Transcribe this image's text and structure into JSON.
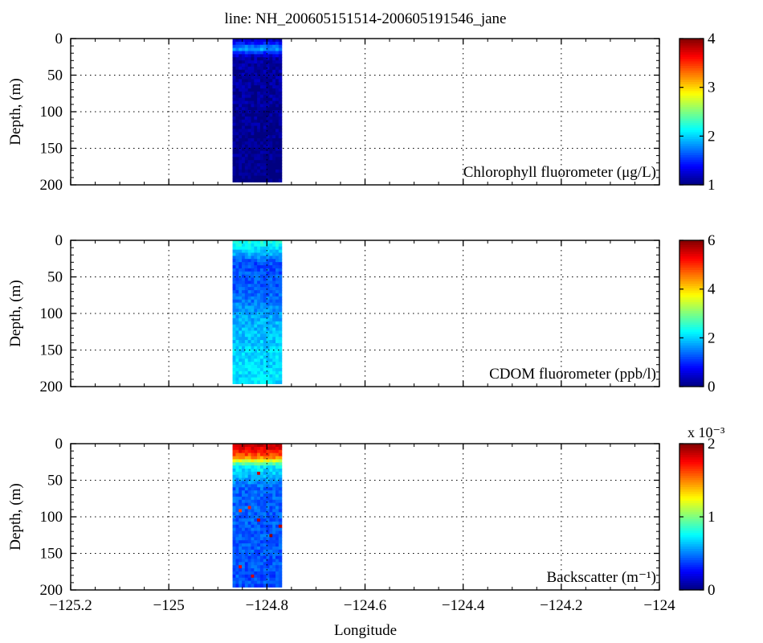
{
  "title": "line: NH_200605151514-200605191546_jane",
  "xlabel": "Longitude",
  "ylabel": "Depth, (m)",
  "chart_data": [
    {
      "type": "heatmap",
      "name": "chlorophyll",
      "label": "Chlorophyll fluorometer (μg/L)",
      "xlim": [
        -125.2,
        -124.0
      ],
      "ylim": [
        0,
        200
      ],
      "xticks": [
        -125.2,
        -125.0,
        -124.8,
        -124.6,
        -124.4,
        -124.2,
        -124.0
      ],
      "xtick_labels": [
        "−125.2",
        "−125",
        "−124.8",
        "−124.6",
        "−124.4",
        "−124.2",
        "−124"
      ],
      "yticks": [
        0,
        50,
        100,
        150,
        200
      ],
      "ytick_labels": [
        "0",
        "50",
        "100",
        "150",
        "200"
      ],
      "grid": true,
      "data_extent": {
        "lon": [
          -124.87,
          -124.77
        ],
        "depth": [
          0,
          196
        ]
      },
      "colorbar": {
        "min": 1,
        "max": 4,
        "ticks": [
          1,
          2,
          3,
          4
        ],
        "tick_labels": [
          "1",
          "2",
          "3",
          "4"
        ],
        "exponent_label": ""
      },
      "profile": [
        {
          "depth": 0,
          "value": 1.1
        },
        {
          "depth": 8,
          "value": 1.5
        },
        {
          "depth": 14,
          "value": 1.9
        },
        {
          "depth": 25,
          "value": 1.1
        },
        {
          "depth": 200,
          "value": 1.0
        }
      ]
    },
    {
      "type": "heatmap",
      "name": "cdom",
      "label": "CDOM fluorometer (ppb/l)",
      "xlim": [
        -125.2,
        -124.0
      ],
      "ylim": [
        0,
        200
      ],
      "xticks": [
        -125.2,
        -125.0,
        -124.8,
        -124.6,
        -124.4,
        -124.2,
        -124.0
      ],
      "xtick_labels": [
        "−125.2",
        "−125",
        "−124.8",
        "−124.6",
        "−124.4",
        "−124.2",
        "−124"
      ],
      "yticks": [
        0,
        50,
        100,
        150,
        200
      ],
      "ytick_labels": [
        "0",
        "50",
        "100",
        "150",
        "200"
      ],
      "grid": true,
      "data_extent": {
        "lon": [
          -124.87,
          -124.77
        ],
        "depth": [
          0,
          196
        ]
      },
      "colorbar": {
        "min": 0,
        "max": 6,
        "ticks": [
          0,
          2,
          4,
          6
        ],
        "tick_labels": [
          "0",
          "2",
          "4",
          "6"
        ],
        "exponent_label": ""
      },
      "profile": [
        {
          "depth": 0,
          "value": 2.5
        },
        {
          "depth": 12,
          "value": 2.1
        },
        {
          "depth": 30,
          "value": 1.2
        },
        {
          "depth": 70,
          "value": 1.3
        },
        {
          "depth": 110,
          "value": 1.8
        },
        {
          "depth": 150,
          "value": 2.0
        },
        {
          "depth": 200,
          "value": 2.1
        }
      ]
    },
    {
      "type": "heatmap",
      "name": "backscatter",
      "label": "Backscatter (m⁻¹)",
      "xlim": [
        -125.2,
        -124.0
      ],
      "ylim": [
        0,
        200
      ],
      "xticks": [
        -125.2,
        -125.0,
        -124.8,
        -124.6,
        -124.4,
        -124.2,
        -124.0
      ],
      "xtick_labels": [
        "−125.2",
        "−125",
        "−124.8",
        "−124.6",
        "−124.4",
        "−124.2",
        "−124"
      ],
      "yticks": [
        0,
        50,
        100,
        150,
        200
      ],
      "ytick_labels": [
        "0",
        "50",
        "100",
        "150",
        "200"
      ],
      "grid": true,
      "data_extent": {
        "lon": [
          -124.87,
          -124.77
        ],
        "depth": [
          0,
          196
        ]
      },
      "colorbar": {
        "min": 0,
        "max": 2,
        "ticks": [
          0,
          1,
          2
        ],
        "tick_labels": [
          "0",
          "1",
          "2"
        ],
        "exponent_label": "x 10⁻³"
      },
      "profile": [
        {
          "depth": 0,
          "value": 1.9
        },
        {
          "depth": 10,
          "value": 1.75
        },
        {
          "depth": 20,
          "value": 1.45
        },
        {
          "depth": 30,
          "value": 0.75
        },
        {
          "depth": 60,
          "value": 0.45
        },
        {
          "depth": 200,
          "value": 0.4
        }
      ]
    }
  ]
}
